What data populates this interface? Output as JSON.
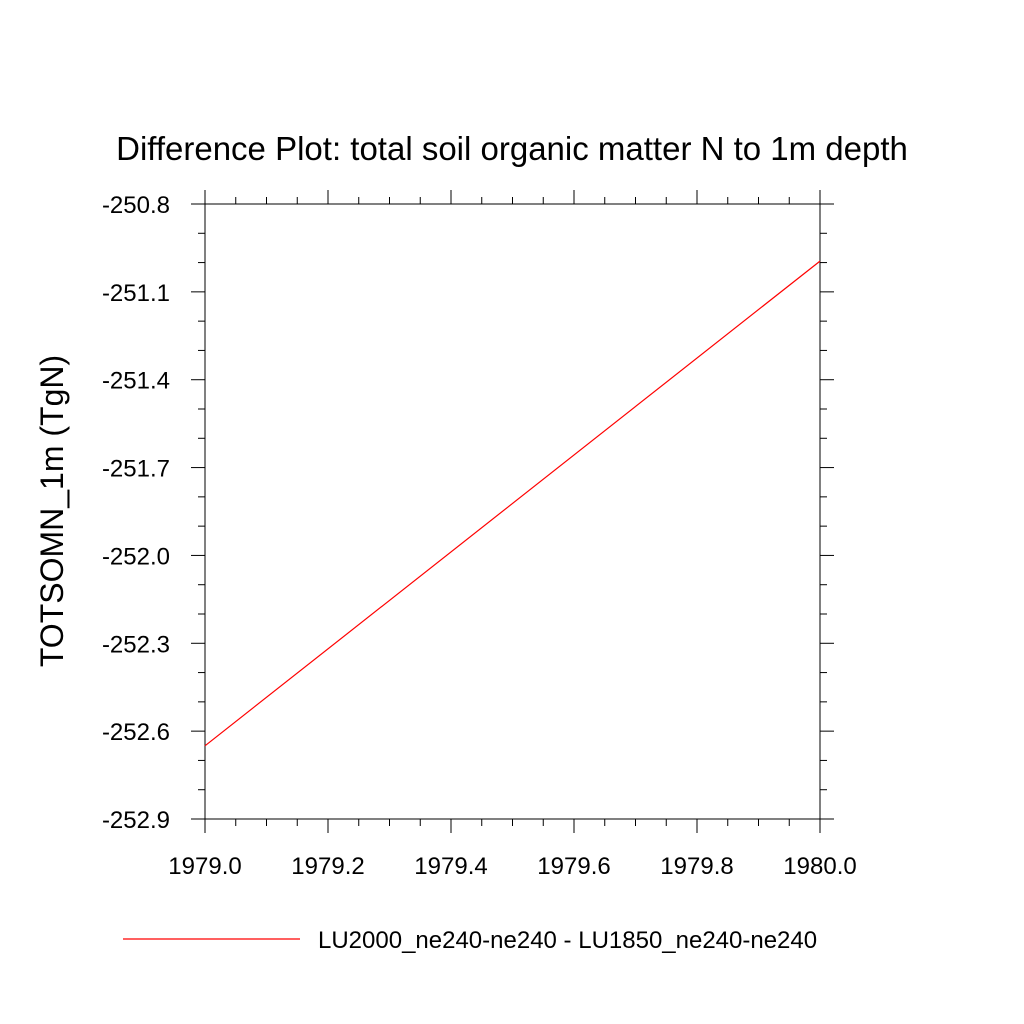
{
  "chart_data": {
    "type": "line",
    "title": "Difference Plot: total soil organic matter N to 1m depth",
    "xlabel": "",
    "ylabel": "TOTSOMN_1m  (TgN)",
    "xlim": [
      1979.0,
      1980.0
    ],
    "ylim": [
      -252.9,
      -250.8
    ],
    "xticks": [
      "1979.0",
      "1979.2",
      "1979.4",
      "1979.6",
      "1979.8",
      "1980.0"
    ],
    "yticks": [
      "-250.8",
      "-251.1",
      "-251.4",
      "-251.7",
      "-252.0",
      "-252.3",
      "-252.6",
      "-252.9"
    ],
    "grid": false,
    "legend_position": "bottom",
    "series": [
      {
        "name": "LU2000_ne240-ne240 - LU1850_ne240-ne240",
        "color": "#ff0000",
        "x": [
          1979.0,
          1980.0
        ],
        "y": [
          -252.65,
          -250.995
        ]
      }
    ]
  }
}
